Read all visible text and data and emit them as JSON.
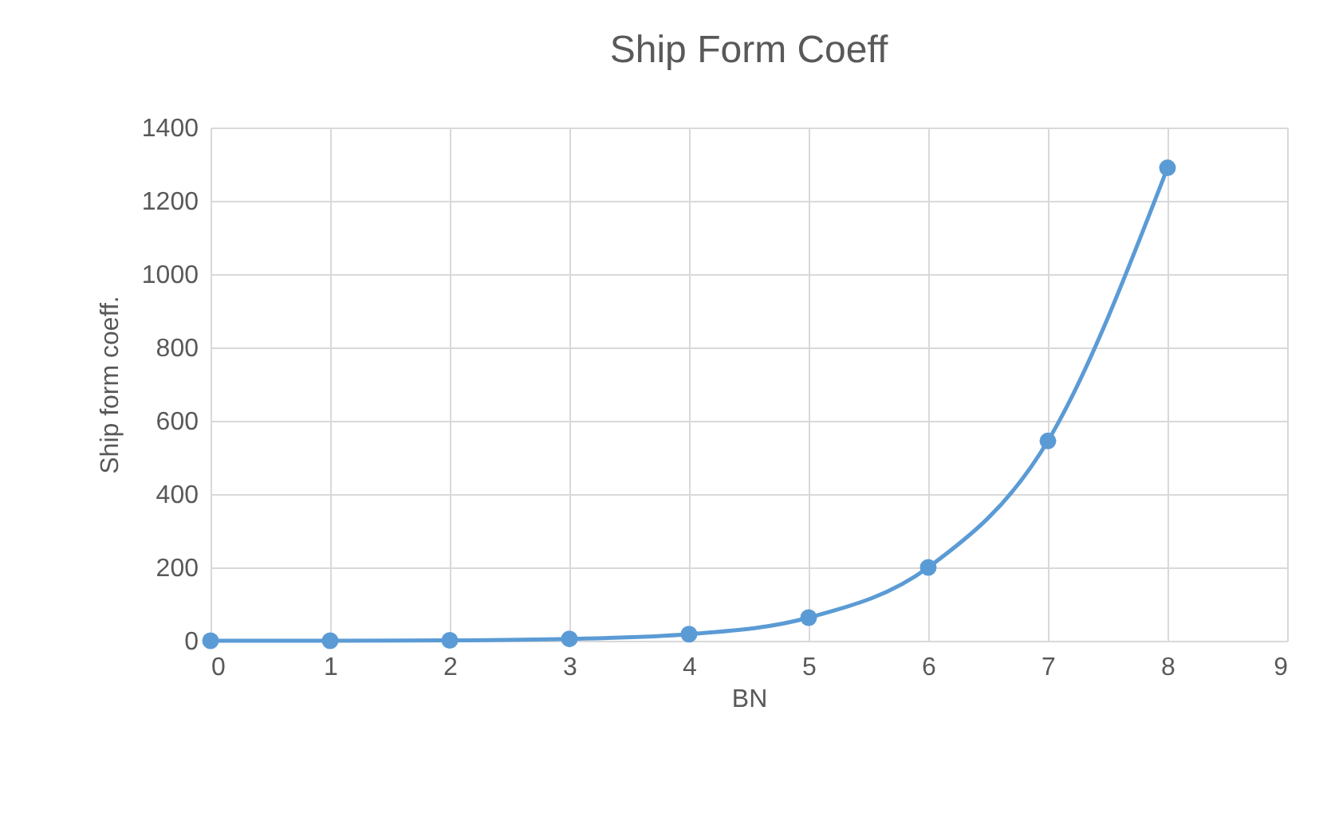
{
  "chart_data": {
    "type": "line",
    "title": "Ship Form Coeff",
    "xlabel": "BN",
    "ylabel": "Ship form coeff.",
    "x": [
      0,
      1,
      2,
      3,
      4,
      5,
      6,
      7,
      8
    ],
    "series": [
      {
        "color": "#5b9bd5",
        "values": [
          0,
          0,
          1,
          5,
          18,
          63,
          200,
          545,
          1290
        ]
      }
    ],
    "xlim": [
      0,
      9
    ],
    "xticks": [
      0,
      1,
      2,
      3,
      4,
      5,
      6,
      7,
      8,
      9
    ],
    "ylim": [
      0,
      1400
    ],
    "yticks": [
      0,
      200,
      400,
      600,
      800,
      1000,
      1200,
      1400
    ],
    "grid": true,
    "marker": "circle",
    "line_style": "solid"
  }
}
